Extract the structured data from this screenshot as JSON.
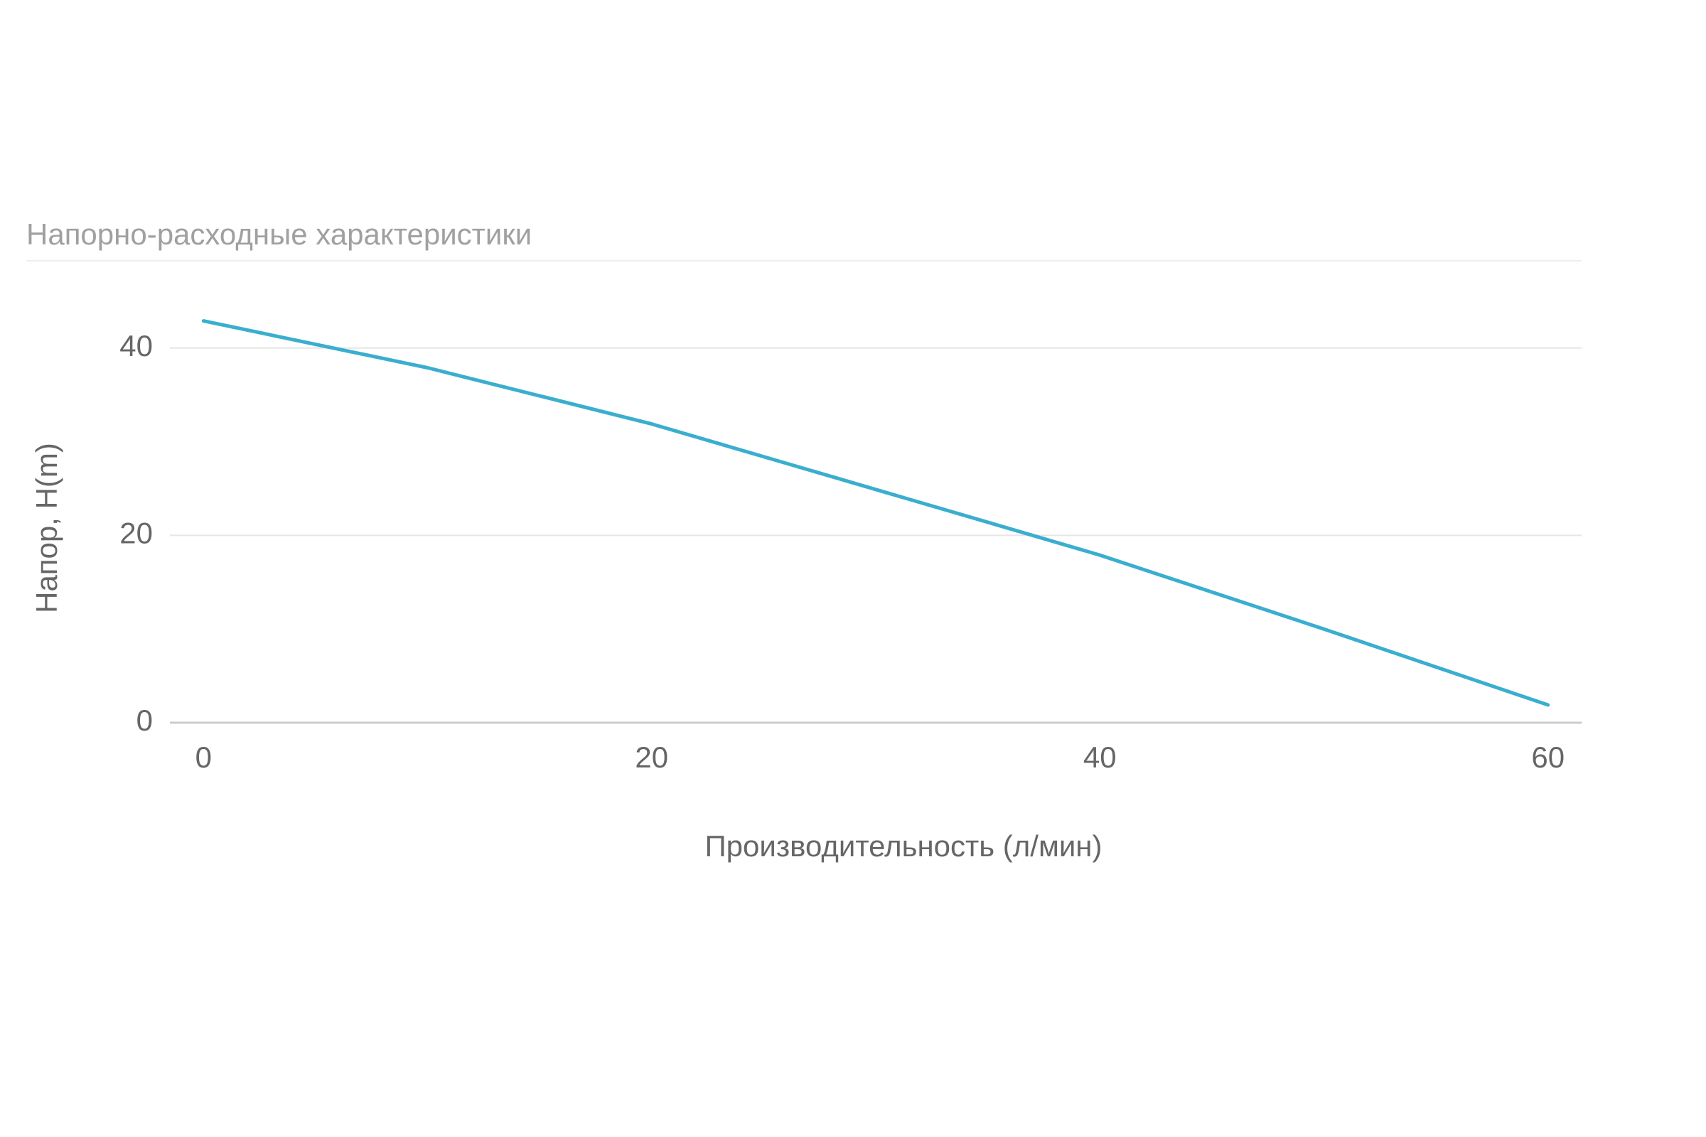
{
  "chart_data": {
    "type": "line",
    "title": "Напорно-расходные характеристики",
    "x_label": "Производительность (л/мин)",
    "y_label": "Напор, H(m)",
    "x": [
      0,
      10,
      20,
      30,
      40,
      50,
      60
    ],
    "series": [
      {
        "name": "Напор",
        "color": "#3aaecf",
        "values": [
          42.9,
          37.9,
          31.9,
          24.9,
          17.9,
          10.0,
          1.9
        ]
      }
    ],
    "xlim": [
      -1.5,
      61.5
    ],
    "xticks": [
      0,
      20,
      40,
      60
    ],
    "ylim": [
      0,
      50
    ],
    "yticks": [
      0,
      20,
      40
    ],
    "grid": true
  }
}
